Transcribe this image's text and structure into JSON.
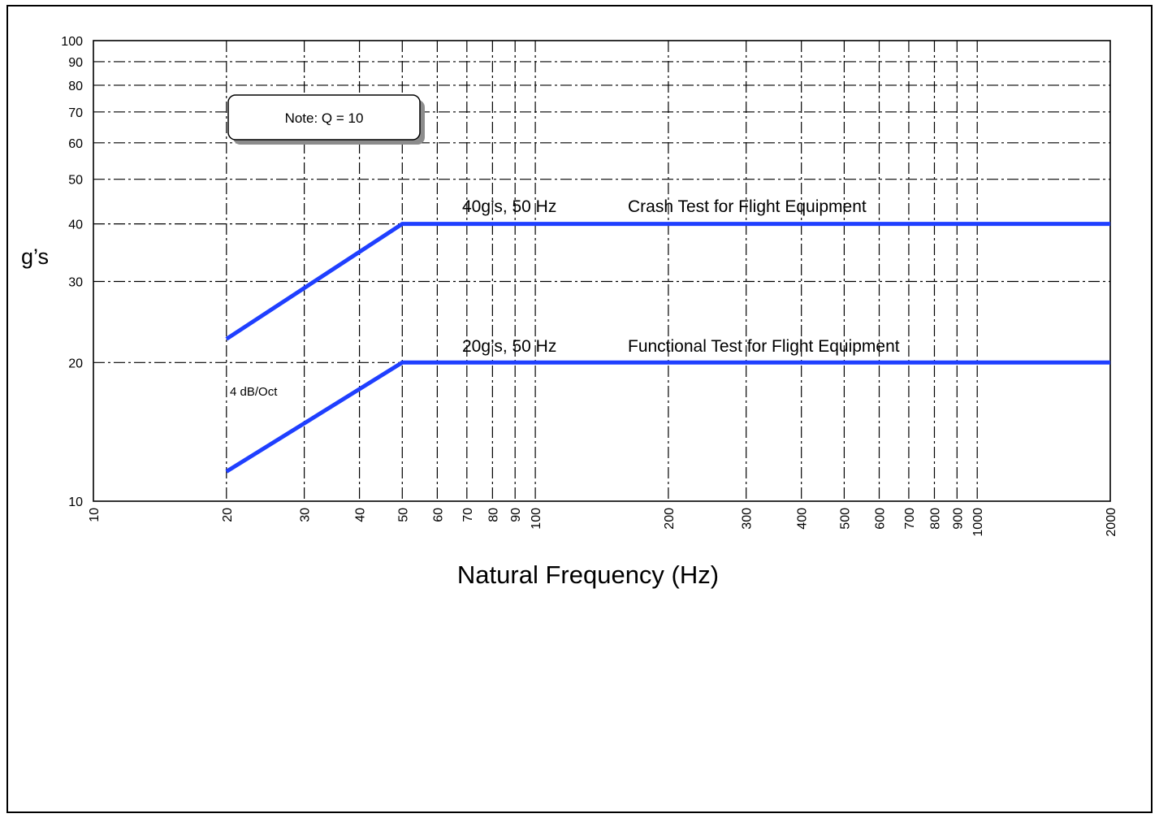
{
  "chart_data": {
    "type": "line",
    "title": "",
    "xlabel": "Natural Frequency (Hz)",
    "ylabel": "g’s",
    "xscale": "log",
    "yscale": "log",
    "xlim": [
      10,
      2000
    ],
    "ylim": [
      10,
      100
    ],
    "grid": true,
    "x_ticks": [
      10,
      20,
      30,
      40,
      50,
      60,
      70,
      80,
      90,
      100,
      200,
      300,
      400,
      500,
      600,
      700,
      800,
      900,
      1000,
      2000
    ],
    "y_ticks": [
      10,
      20,
      30,
      40,
      50,
      60,
      70,
      80,
      90,
      100
    ],
    "color": "#1f3fff",
    "series": [
      {
        "points": [
          [
            20,
            22.5
          ],
          [
            50,
            40
          ],
          [
            2000,
            40
          ]
        ]
      },
      {
        "points": [
          [
            20,
            11.6
          ],
          [
            50,
            20
          ],
          [
            2000,
            20
          ]
        ]
      }
    ],
    "annotations": {
      "note_box": "Note: Q = 10",
      "crash_value": "40g’s, 50 Hz",
      "crash_label": "Crash Test for Flight Equipment",
      "functional_value": "20g’s, 50 Hz",
      "functional_label": "Functional Test for Flight Equipment",
      "slope": "4 dB/Oct"
    }
  }
}
